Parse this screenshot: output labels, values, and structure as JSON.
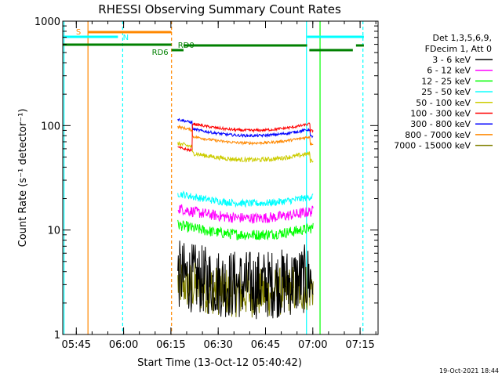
{
  "chart_data": {
    "type": "line",
    "title": "RHESSI Observing Summary Count Rates",
    "xlabel": "Start Time (13-Oct-12 05:40:42)",
    "ylabel": "Count Rate (s⁻¹ detector⁻¹)",
    "yscale": "log",
    "ylim": [
      1,
      1000
    ],
    "xlim_minutes": [
      0,
      100
    ],
    "x_ticks": [
      "05:45",
      "06:00",
      "06:15",
      "06:30",
      "06:45",
      "07:00",
      "07:15"
    ],
    "y_ticks": [
      "1",
      "10",
      "100",
      "1000"
    ],
    "legend_header": [
      "Det 1,3,5,6,9,",
      "FDecim 1, Att 0"
    ],
    "grid": false,
    "legend_position": "right",
    "annotations": {
      "saa_label": "S",
      "night_label": "N",
      "rd0_label": "RD0",
      "rd6_label": "RD6"
    },
    "series": [
      {
        "name": "3 - 6 keV",
        "color": "#000000",
        "level": 3.0,
        "noise": 0.35
      },
      {
        "name": "6 - 12 keV",
        "color": "#ff00ff",
        "level": 13.0,
        "noise": 0.12
      },
      {
        "name": "12 - 25 keV",
        "color": "#00ff00",
        "level": 9.0,
        "noise": 0.12
      },
      {
        "name": "25 - 50 keV",
        "color": "#00ffff",
        "level": 18.0,
        "noise": 0.08
      },
      {
        "name": "50 - 100 keV",
        "color": "#cccc00",
        "level": 47.0,
        "noise": 0.05
      },
      {
        "name": "100 - 300 keV",
        "color": "#ff0000",
        "level": 90.0,
        "noise": 0.03
      },
      {
        "name": "300 - 800 keV",
        "color": "#0000ff",
        "level": 80.0,
        "noise": 0.03
      },
      {
        "name": "800 - 7000 keV",
        "color": "#ff8800",
        "level": 68.0,
        "noise": 0.03
      },
      {
        "name": "7000 - 15000 keV",
        "color": "#808000",
        "level": 2.5,
        "noise": 0.25
      }
    ]
  },
  "footer": {
    "timestamp": "19-Oct-2021 18:44"
  }
}
